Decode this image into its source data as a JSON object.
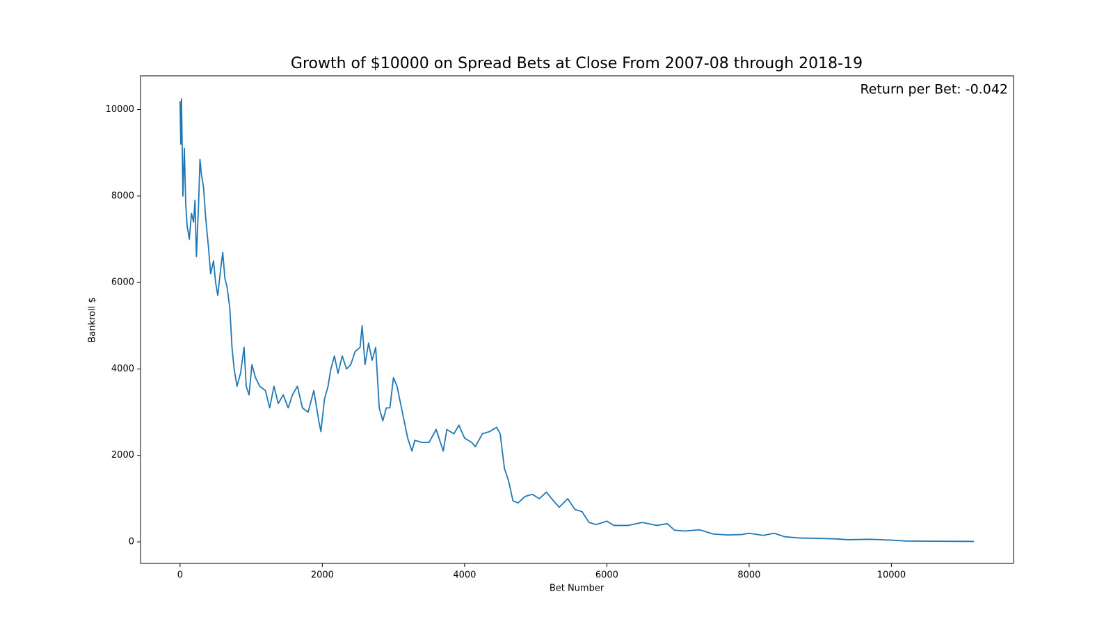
{
  "chart_data": {
    "type": "line",
    "title": "Growth of $10000 on Spread Bets at Close From 2007-08 through 2018-19",
    "annotation": "Return per Bet: -0.042",
    "x_label": "Bet Number",
    "y_label": "Bankroll $",
    "color": "#1f77b4",
    "xlim": [
      -556,
      11717
    ],
    "ylim": [
      -498,
      10781
    ],
    "xticks": [
      0,
      2000,
      4000,
      6000,
      8000,
      10000
    ],
    "yticks": [
      0,
      2000,
      4000,
      6000,
      8000,
      10000
    ],
    "x": [
      0,
      10,
      20,
      40,
      60,
      80,
      100,
      130,
      160,
      190,
      210,
      230,
      260,
      280,
      300,
      330,
      360,
      400,
      430,
      470,
      500,
      530,
      570,
      600,
      630,
      660,
      700,
      730,
      760,
      800,
      850,
      900,
      930,
      970,
      1010,
      1060,
      1120,
      1200,
      1260,
      1320,
      1380,
      1450,
      1520,
      1580,
      1650,
      1720,
      1800,
      1880,
      1950,
      1980,
      2030,
      2080,
      2120,
      2170,
      2220,
      2280,
      2340,
      2400,
      2460,
      2530,
      2560,
      2600,
      2650,
      2700,
      2750,
      2800,
      2850,
      2900,
      2950,
      3000,
      3050,
      3100,
      3150,
      3200,
      3260,
      3300,
      3400,
      3500,
      3600,
      3700,
      3750,
      3850,
      3920,
      4000,
      4100,
      4150,
      4250,
      4350,
      4450,
      4500,
      4560,
      4620,
      4680,
      4750,
      4850,
      4950,
      5050,
      5150,
      5250,
      5330,
      5450,
      5550,
      5650,
      5750,
      5850,
      6000,
      6100,
      6300,
      6500,
      6700,
      6850,
      6950,
      7100,
      7300,
      7500,
      7700,
      7900,
      8000,
      8200,
      8350,
      8500,
      8700,
      9000,
      9200,
      9400,
      9700,
      10000,
      10200,
      10600,
      11000,
      11160
    ],
    "values": [
      10200,
      9200,
      10250,
      8000,
      9100,
      7800,
      7300,
      7000,
      7600,
      7400,
      7900,
      6600,
      7800,
      8850,
      8500,
      8200,
      7500,
      6800,
      6200,
      6500,
      6000,
      5700,
      6300,
      6700,
      6100,
      5900,
      5400,
      4500,
      4000,
      3600,
      3900,
      4500,
      3600,
      3400,
      4100,
      3800,
      3600,
      3500,
      3100,
      3600,
      3200,
      3400,
      3100,
      3400,
      3600,
      3100,
      3000,
      3500,
      2800,
      2550,
      3300,
      3600,
      4000,
      4300,
      3900,
      4300,
      4000,
      4100,
      4400,
      4500,
      5000,
      4100,
      4600,
      4200,
      4500,
      3100,
      2800,
      3100,
      3100,
      3800,
      3600,
      3200,
      2800,
      2400,
      2100,
      2350,
      2300,
      2300,
      2600,
      2100,
      2600,
      2500,
      2700,
      2400,
      2300,
      2200,
      2500,
      2550,
      2650,
      2500,
      1700,
      1400,
      950,
      900,
      1050,
      1100,
      1000,
      1150,
      950,
      800,
      1000,
      750,
      700,
      450,
      400,
      480,
      380,
      380,
      450,
      380,
      420,
      270,
      250,
      280,
      180,
      160,
      170,
      200,
      150,
      200,
      120,
      90,
      80,
      70,
      50,
      60,
      40,
      20,
      15,
      12,
      10
    ]
  }
}
